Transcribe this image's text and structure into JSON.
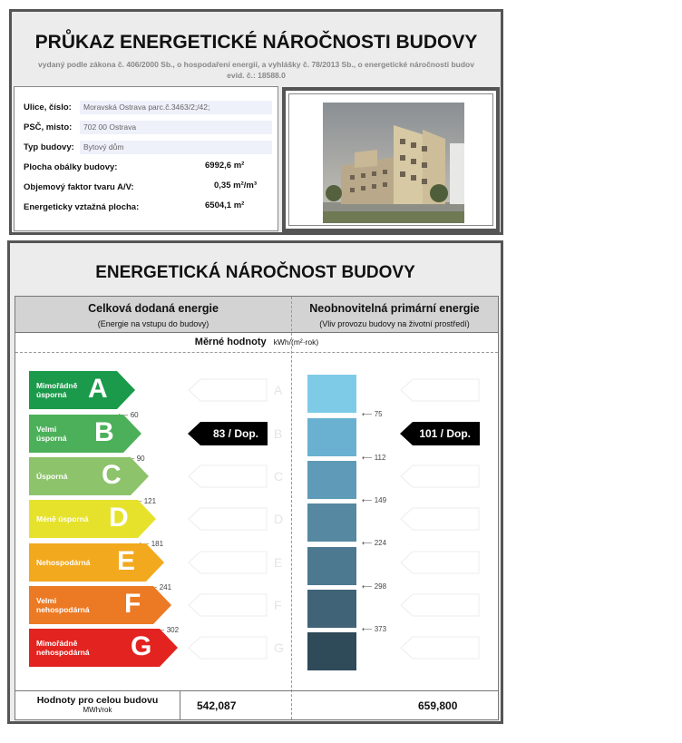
{
  "header": {
    "title": "PRŮKAZ ENERGETICKÉ NÁROČNOSTI BUDOVY",
    "subtitle": "vydaný podle zákona č. 406/2000 Sb., o hospodaření energií, a vyhlášky č. 78/2013 Sb., o energetické náročnosti budov",
    "evid": "evid. č.: 18588.0"
  },
  "info": {
    "street_label": "Ulice, číslo:",
    "street": "Moravská Ostrava parc.č.3463/2;/42;",
    "psc_label": "PSČ, misto:",
    "psc": "702 00  Ostrava",
    "type_label": "Typ budovy:",
    "type": "Bytový dům",
    "envelope_label": "Plocha obálky budovy:",
    "envelope": "6992,6 m²",
    "shape_label": "Objemový faktor tvaru A/V:",
    "shape": "0,35 m²/m³",
    "area_label": "Energeticky vztažná plocha:",
    "area": "6504,1 m²"
  },
  "rating": {
    "title": "ENERGETICKÁ NÁROČNOST BUDOVY",
    "left_title": "Celková dodaná energie",
    "left_sub": "(Energie na vstupu do budovy)",
    "right_title": "Neobnovitelná primární energie",
    "right_sub": "(Vliv provozu budovy na životní prostředí)",
    "specific_label": "Měrné hodnoty",
    "unit": "kWh/(m²·rok)",
    "classes": [
      {
        "letter": "A",
        "label": "Mimořádně\núsporná",
        "color": "#1a9a4a"
      },
      {
        "letter": "B",
        "label": "Velmi\núsporná",
        "color": "#4cb05a"
      },
      {
        "letter": "C",
        "label": "Úsporná",
        "color": "#8dc36b"
      },
      {
        "letter": "D",
        "label": "Méně úsporná",
        "color": "#e6e22c"
      },
      {
        "letter": "E",
        "label": "Nehospodárná",
        "color": "#f2a91e"
      },
      {
        "letter": "F",
        "label": "Velmi\nnehospodárná",
        "color": "#ec7a24"
      },
      {
        "letter": "G",
        "label": "Mimořádně\nnehospodárná",
        "color": "#e2231f"
      }
    ],
    "left_thresholds": [
      "60",
      "90",
      "121",
      "181",
      "241",
      "302"
    ],
    "right_thresholds": [
      "75",
      "112",
      "149",
      "224",
      "298",
      "373"
    ],
    "right_colors": [
      "#7ecbe8",
      "#6ab1d1",
      "#5f9bb8",
      "#5688a2",
      "#4c7890",
      "#416378",
      "#2f4a58"
    ],
    "left_value": "83 / Dop.",
    "left_class": "B",
    "right_value": "101 / Dop.",
    "right_class": "B",
    "total_label": "Hodnoty pro celou budovu",
    "total_unit": "MWh/rok",
    "total_left": "542,087",
    "total_right": "659,800"
  }
}
